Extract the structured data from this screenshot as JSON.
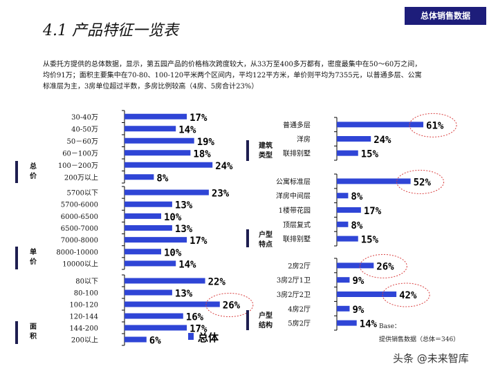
{
  "header": {
    "title": "4.1 产品特征一览表",
    "tag": "总体销售数据"
  },
  "summary": {
    "lines": [
      "从委托方提供的总体数据，显示，第五园产品的价格档次跨度较大，从33万至400多万都有，密度最集中在50～60万之间，",
      "均价91万；面积主要集中在70-80、100-120平米两个区间内，平均122平方米，单价则平均为7355元，以普通多层、公寓",
      "标准层为主，3房单位超过半数，多房比例较高（4房、5房合计23%）"
    ]
  },
  "colors": {
    "bar": "#2f45d6",
    "section_tag": "#1e1e50",
    "highlight_ellipse": "#d94040"
  },
  "chart_data": [
    {
      "type": "bar",
      "orientation": "horizontal",
      "section": "总价",
      "categories": [
        "30-40万",
        "40-50万",
        "50－60万",
        "60－100万",
        "100－200万",
        "200万以上"
      ],
      "values": [
        17,
        14,
        19,
        18,
        24,
        8
      ],
      "labels": [
        "17%",
        "14%",
        "19%",
        "18%",
        "24%",
        "8%"
      ],
      "highlight": []
    },
    {
      "type": "bar",
      "orientation": "horizontal",
      "section": "单价",
      "categories": [
        "5700以下",
        "5700-6000",
        "6000-6500",
        "6500-7000",
        "7000-8000",
        "8000-10000",
        "10000以上"
      ],
      "values": [
        23,
        13,
        10,
        13,
        17,
        10,
        14
      ],
      "labels": [
        "23%",
        "13%",
        "10%",
        "13%",
        "17%",
        "10%",
        "14%"
      ],
      "highlight": []
    },
    {
      "type": "bar",
      "orientation": "horizontal",
      "section": "面积",
      "categories": [
        "80以下",
        "80-100",
        "100-120",
        "120-144",
        "144-200",
        "200以上"
      ],
      "values": [
        22,
        13,
        26,
        16,
        17,
        6
      ],
      "labels": [
        "22%",
        "13%",
        "26%",
        "16%",
        "17%",
        "6%"
      ],
      "highlight": [
        2
      ]
    },
    {
      "type": "bar",
      "orientation": "horizontal",
      "section": "建筑类型",
      "categories": [
        "普通多层",
        "洋房",
        "联排别墅"
      ],
      "values": [
        61,
        24,
        15
      ],
      "labels": [
        "61%",
        "24%",
        "15%"
      ],
      "highlight": [
        0
      ]
    },
    {
      "type": "bar",
      "orientation": "horizontal",
      "section": "户型特点",
      "categories": [
        "公寓标准层",
        "洋房中间层",
        "1楼带花园",
        "顶层复式",
        "联排别墅"
      ],
      "values": [
        52,
        8,
        17,
        8,
        15
      ],
      "labels": [
        "52%",
        "8%",
        "17%",
        "8%",
        "15%"
      ],
      "highlight": [
        0
      ]
    },
    {
      "type": "bar",
      "orientation": "horizontal",
      "section": "户型结构",
      "categories": [
        "2房2厅",
        "3房2厅1卫",
        "3房2厅2卫",
        "4房2厅",
        "5房2厅"
      ],
      "values": [
        26,
        9,
        42,
        9,
        14
      ],
      "labels": [
        "26%",
        "9%",
        "42%",
        "9%",
        "14%"
      ],
      "highlight": [
        0,
        2
      ]
    }
  ],
  "legend": {
    "label": "总体"
  },
  "base_note": {
    "line1": "Base：",
    "line2": "提供销售数据（总体＝346）"
  },
  "watermark": "头条 @未来智库"
}
